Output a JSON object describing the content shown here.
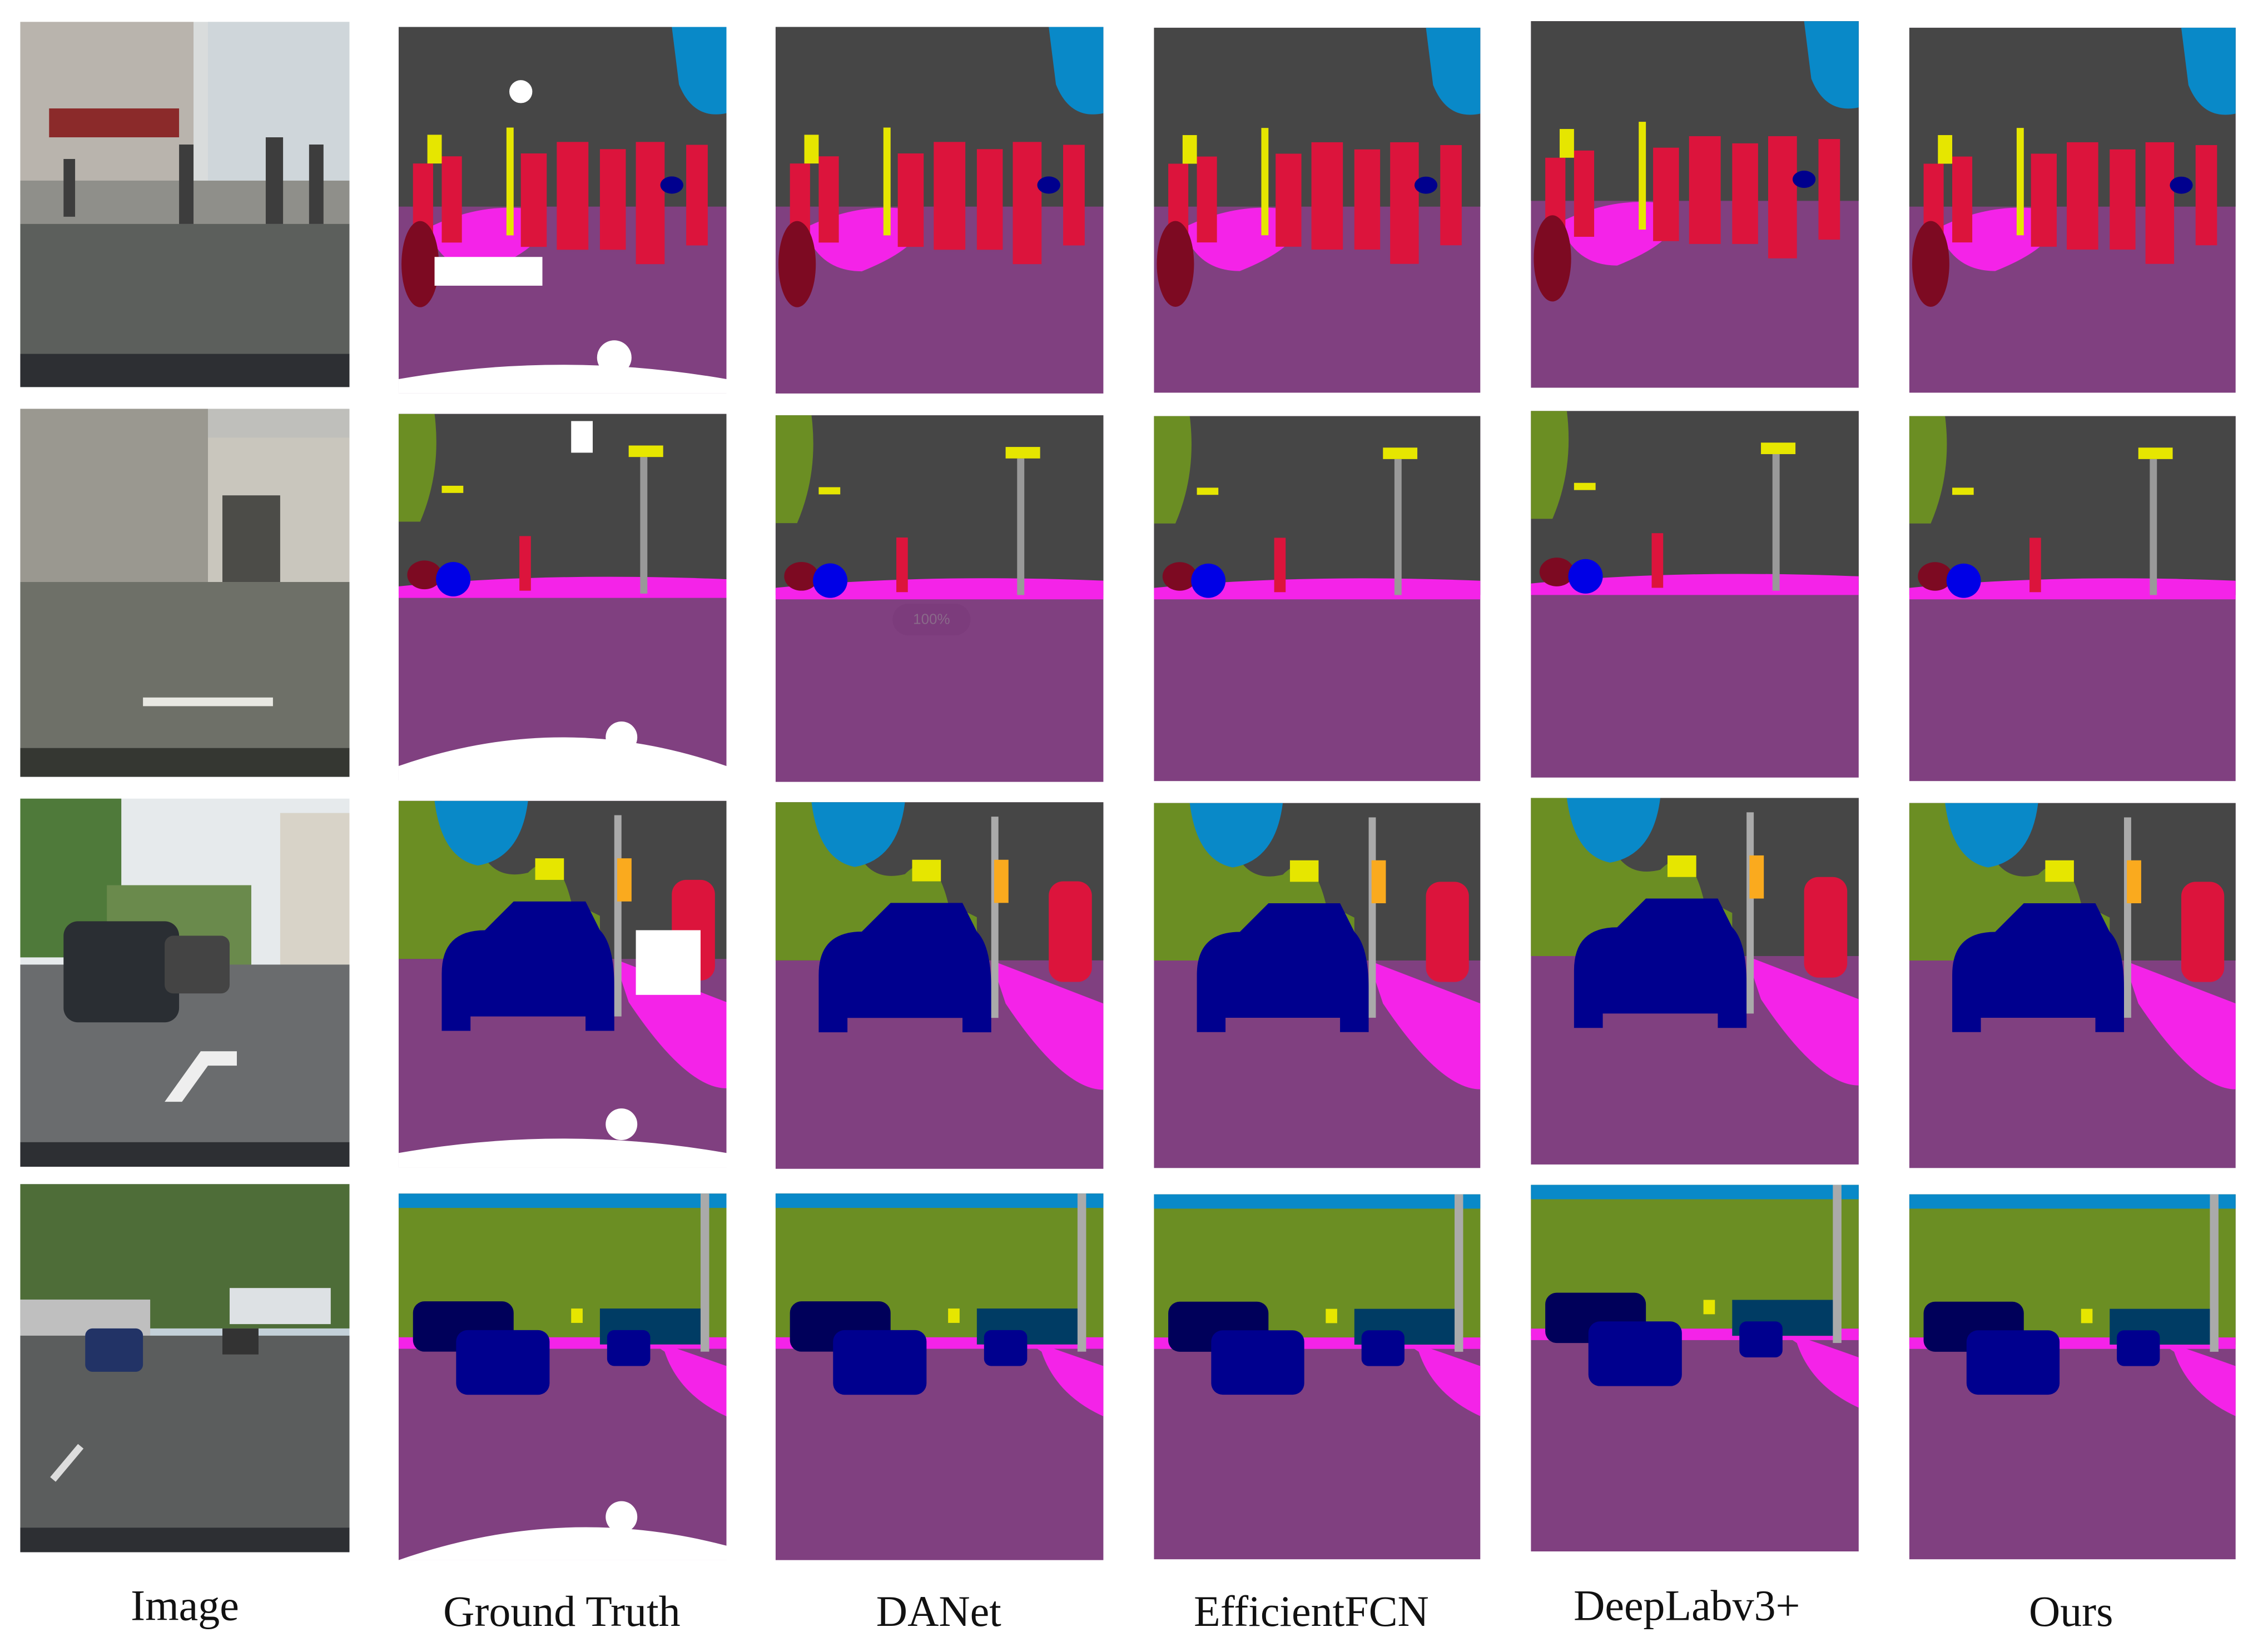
{
  "columns": [
    "Image",
    "Ground Truth",
    "DANet",
    "EfficientFCN",
    "DeepLabv3+",
    "Ours"
  ],
  "overlay": "100%"
}
